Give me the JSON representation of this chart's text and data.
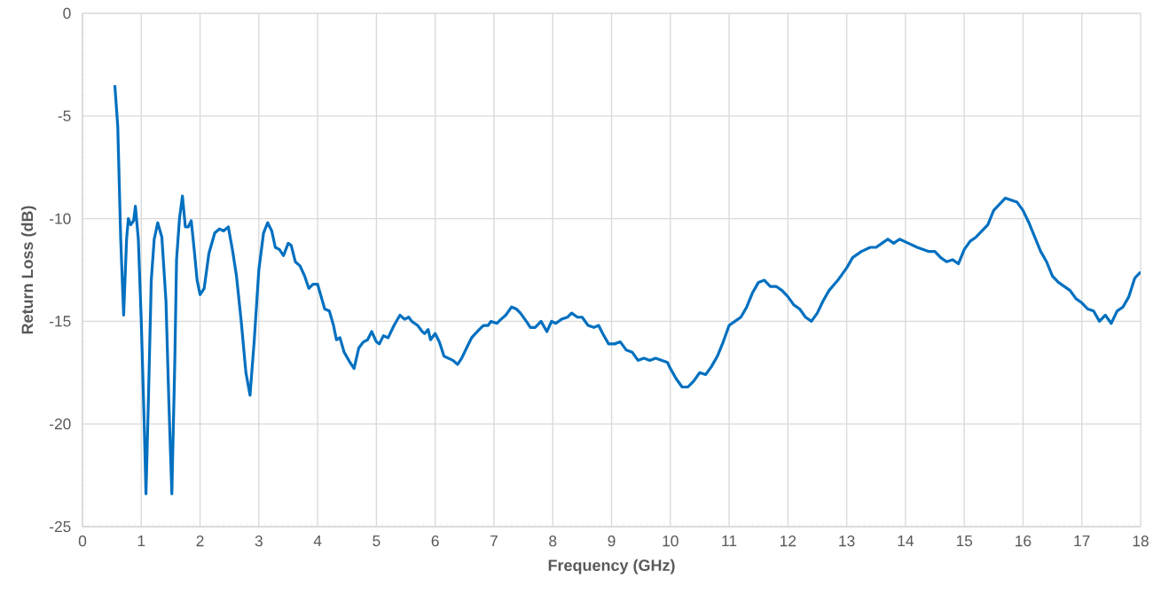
{
  "chart_data": {
    "type": "line",
    "xlabel": "Frequency (GHz)",
    "ylabel": "Return Loss (dB)",
    "xlim": [
      0,
      18
    ],
    "ylim": [
      -25,
      0
    ],
    "xticks": [
      0,
      1,
      2,
      3,
      4,
      5,
      6,
      7,
      8,
      9,
      10,
      11,
      12,
      13,
      14,
      15,
      16,
      17,
      18
    ],
    "yticks": [
      -25,
      -20,
      -15,
      -10,
      -5,
      0
    ],
    "grid": true,
    "marker": "none",
    "line_style": "solid",
    "series": [
      {
        "color": "#0070c0",
        "x": [
          0.55,
          0.6,
          0.65,
          0.7,
          0.75,
          0.78,
          0.82,
          0.87,
          0.9,
          0.95,
          1.0,
          1.05,
          1.08,
          1.12,
          1.17,
          1.22,
          1.28,
          1.35,
          1.42,
          1.47,
          1.52,
          1.57,
          1.6,
          1.65,
          1.7,
          1.75,
          1.8,
          1.85,
          1.9,
          1.95,
          2.0,
          2.07,
          2.15,
          2.25,
          2.33,
          2.4,
          2.48,
          2.55,
          2.62,
          2.7,
          2.78,
          2.85,
          2.92,
          3.0,
          3.08,
          3.15,
          3.22,
          3.28,
          3.35,
          3.42,
          3.5,
          3.55,
          3.62,
          3.7,
          3.78,
          3.85,
          3.92,
          4.0,
          4.07,
          4.12,
          4.2,
          4.27,
          4.32,
          4.38,
          4.45,
          4.55,
          4.62,
          4.7,
          4.78,
          4.85,
          4.92,
          5.0,
          5.05,
          5.12,
          5.2,
          5.3,
          5.4,
          5.48,
          5.55,
          5.6,
          5.65,
          5.7,
          5.78,
          5.82,
          5.88,
          5.92,
          6.0,
          6.07,
          6.15,
          6.3,
          6.38,
          6.45,
          6.55,
          6.62,
          6.75,
          6.82,
          6.9,
          6.95,
          7.05,
          7.12,
          7.2,
          7.3,
          7.38,
          7.45,
          7.55,
          7.62,
          7.7,
          7.8,
          7.9,
          7.98,
          8.05,
          8.15,
          8.25,
          8.32,
          8.42,
          8.5,
          8.6,
          8.7,
          8.78,
          8.85,
          8.95,
          9.05,
          9.15,
          9.25,
          9.35,
          9.45,
          9.55,
          9.65,
          9.75,
          9.85,
          9.95,
          10.0,
          10.1,
          10.2,
          10.3,
          10.4,
          10.5,
          10.6,
          10.7,
          10.8,
          10.9,
          11.0,
          11.1,
          11.2,
          11.3,
          11.4,
          11.5,
          11.6,
          11.7,
          11.8,
          11.9,
          12.0,
          12.1,
          12.2,
          12.3,
          12.4,
          12.5,
          12.6,
          12.7,
          12.85,
          13.0,
          13.1,
          13.25,
          13.4,
          13.5,
          13.6,
          13.7,
          13.8,
          13.9,
          14.05,
          14.2,
          14.3,
          14.4,
          14.5,
          14.6,
          14.7,
          14.8,
          14.9,
          15.0,
          15.1,
          15.2,
          15.3,
          15.4,
          15.5,
          15.6,
          15.7,
          15.8,
          15.9,
          16.0,
          16.1,
          16.2,
          16.3,
          16.4,
          16.5,
          16.6,
          16.7,
          16.8,
          16.9,
          17.0,
          17.1,
          17.2,
          17.3,
          17.4,
          17.5,
          17.6,
          17.7,
          17.8,
          17.9,
          18.0
        ],
        "values": [
          -3.5,
          -5.5,
          -11,
          -14.7,
          -11,
          -10,
          -10.3,
          -10.1,
          -9.4,
          -11,
          -15,
          -20,
          -23.4,
          -19,
          -13,
          -11,
          -10.2,
          -10.9,
          -14,
          -19,
          -23.4,
          -17,
          -12,
          -10,
          -8.9,
          -10.4,
          -10.4,
          -10.1,
          -11.5,
          -13,
          -13.7,
          -13.4,
          -11.7,
          -10.7,
          -10.5,
          -10.6,
          -10.4,
          -11.5,
          -12.8,
          -15,
          -17.5,
          -18.6,
          -16,
          -12.5,
          -10.7,
          -10.2,
          -10.6,
          -11.4,
          -11.5,
          -11.8,
          -11.2,
          -11.3,
          -12.1,
          -12.3,
          -12.8,
          -13.4,
          -13.2,
          -13.2,
          -13.9,
          -14.4,
          -14.5,
          -15.2,
          -15.9,
          -15.8,
          -16.5,
          -17.0,
          -17.3,
          -16.3,
          -16.0,
          -15.9,
          -15.5,
          -16.0,
          -16.1,
          -15.7,
          -15.8,
          -15.2,
          -14.7,
          -14.9,
          -14.8,
          -15.0,
          -15.1,
          -15.2,
          -15.5,
          -15.6,
          -15.4,
          -15.9,
          -15.6,
          -16.0,
          -16.7,
          -16.9,
          -17.1,
          -16.8,
          -16.2,
          -15.8,
          -15.4,
          -15.2,
          -15.2,
          -15.0,
          -15.1,
          -14.9,
          -14.7,
          -14.3,
          -14.4,
          -14.6,
          -15.0,
          -15.3,
          -15.3,
          -15.0,
          -15.5,
          -15.0,
          -15.1,
          -14.9,
          -14.8,
          -14.6,
          -14.8,
          -14.8,
          -15.2,
          -15.3,
          -15.2,
          -15.6,
          -16.1,
          -16.1,
          -16.0,
          -16.4,
          -16.5,
          -16.9,
          -16.8,
          -16.9,
          -16.8,
          -16.9,
          -17.0,
          -17.3,
          -17.8,
          -18.2,
          -18.2,
          -17.9,
          -17.5,
          -17.6,
          -17.2,
          -16.7,
          -16.0,
          -15.2,
          -15.0,
          -14.8,
          -14.3,
          -13.6,
          -13.1,
          -13.0,
          -13.3,
          -13.3,
          -13.5,
          -13.8,
          -14.2,
          -14.4,
          -14.8,
          -15.0,
          -14.6,
          -14.0,
          -13.5,
          -13.0,
          -12.4,
          -11.9,
          -11.6,
          -11.4,
          -11.4,
          -11.2,
          -11.0,
          -11.2,
          -11.0,
          -11.2,
          -11.4,
          -11.5,
          -11.6,
          -11.6,
          -11.9,
          -12.1,
          -12.0,
          -12.2,
          -11.5,
          -11.1,
          -10.9,
          -10.6,
          -10.3,
          -9.6,
          -9.3,
          -9.0,
          -9.1,
          -9.2,
          -9.6,
          -10.2,
          -10.9,
          -11.6,
          -12.1,
          -12.8,
          -13.1,
          -13.3,
          -13.5,
          -13.9,
          -14.1,
          -14.4,
          -14.5,
          -15.0,
          -14.7,
          -15.1,
          -14.5,
          -14.3,
          -13.8,
          -12.9,
          -12.6
        ]
      }
    ]
  }
}
